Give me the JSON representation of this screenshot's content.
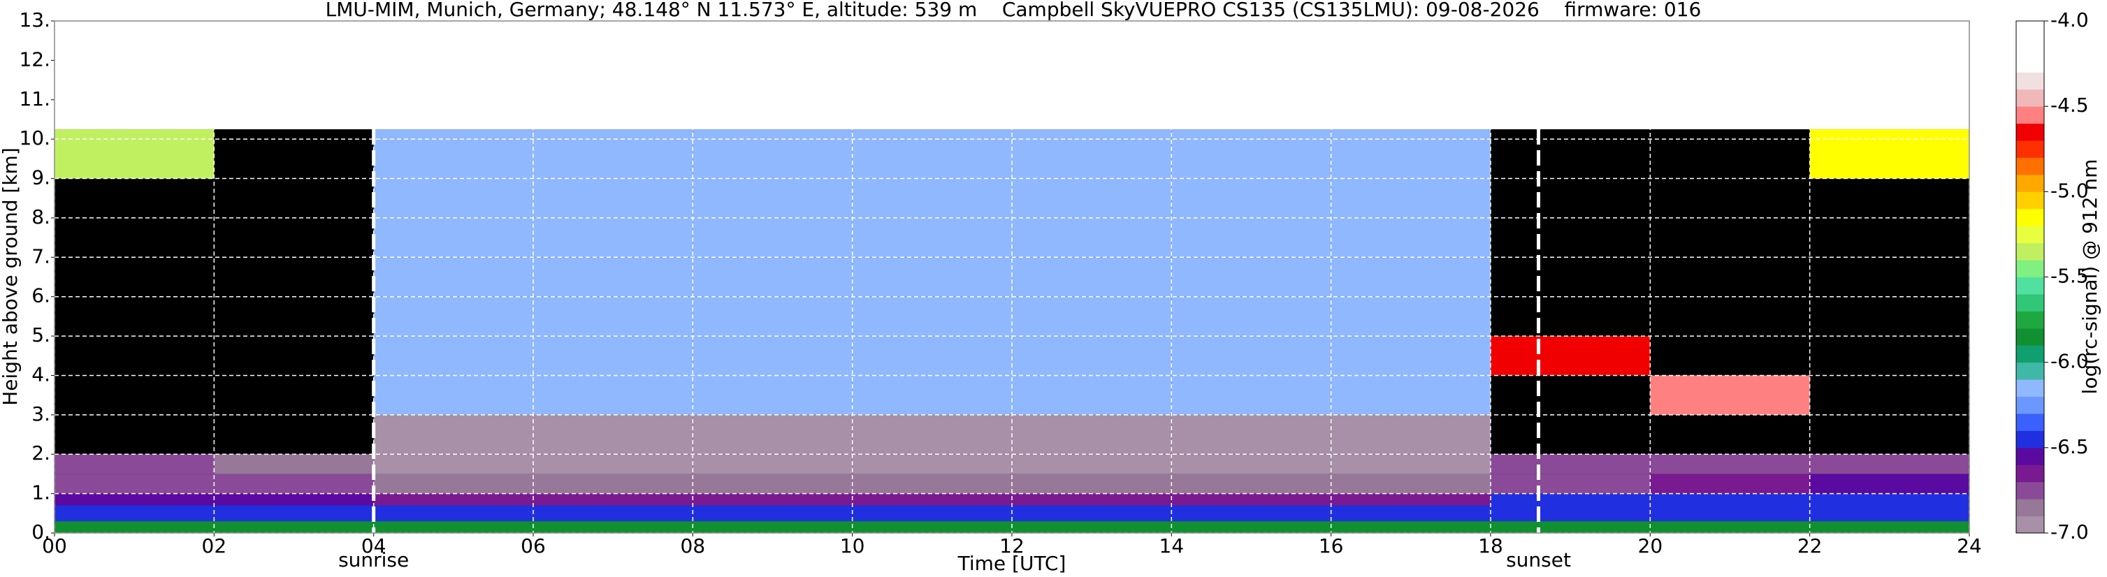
{
  "chart_data": {
    "type": "heatmap",
    "title": "LMU-MIM, Munich, Germany; 48.148° N 11.573° E, altitude: 539 m    Campbell SkyVUEPRO CS135 (CS135LMU): 09-08-2026    firmware: 016",
    "xlabel": "Time [UTC]",
    "ylabel": "Height above ground [km]",
    "colorbar_label": "log(rc-signal) @ 912 nm",
    "xlim": [
      0,
      24
    ],
    "ylim": [
      0,
      13
    ],
    "xticks": [
      {
        "value": 0,
        "label": "00"
      },
      {
        "value": 2,
        "label": "02"
      },
      {
        "value": 4,
        "label": "04"
      },
      {
        "value": 6,
        "label": "06"
      },
      {
        "value": 8,
        "label": "08"
      },
      10,
      12,
      14,
      16,
      18,
      20,
      22,
      24
    ],
    "yticks": [
      {
        "value": 0,
        "label": "0."
      },
      {
        "value": 1,
        "label": "1."
      },
      {
        "value": 2,
        "label": "2."
      },
      {
        "value": 3,
        "label": "3."
      },
      {
        "value": 4,
        "label": "4."
      },
      {
        "value": 5,
        "label": "5."
      },
      {
        "value": 6,
        "label": "6."
      },
      {
        "value": 7,
        "label": "7."
      },
      {
        "value": 8,
        "label": "8."
      },
      {
        "value": 9,
        "label": "9."
      },
      {
        "value": 10,
        "label": "10."
      },
      {
        "value": 11,
        "label": "11."
      },
      {
        "value": 12,
        "label": "12."
      },
      {
        "value": 13,
        "label": "13."
      }
    ],
    "grid": true,
    "x_edges": [
      0,
      2,
      4,
      6,
      8,
      10,
      12,
      14,
      16,
      18,
      20,
      22,
      24
    ],
    "y_edges": [
      0,
      0.3,
      0.7,
      1.0,
      1.5,
      2.0,
      3,
      4,
      5,
      6,
      7,
      8,
      9,
      10.25
    ],
    "values": [
      [
        -5.85,
        -5.85,
        -5.85,
        -5.85,
        -5.85,
        -5.85,
        -5.85,
        -5.85,
        -5.85,
        -5.85,
        -5.85,
        -5.85
      ],
      [
        -6.45,
        -6.45,
        -6.45,
        -6.45,
        -6.45,
        -6.45,
        -6.45,
        -6.45,
        -6.45,
        -6.45,
        -6.45,
        -6.45
      ],
      [
        -6.6,
        -6.6,
        -6.65,
        -6.65,
        -6.65,
        -6.65,
        -6.65,
        -6.65,
        -6.65,
        -6.5,
        -6.45,
        -6.45
      ],
      [
        -6.75,
        -6.8,
        -6.9,
        -6.9,
        -6.9,
        -6.9,
        -6.9,
        -6.9,
        -6.9,
        -6.75,
        -6.7,
        -6.55
      ],
      [
        -6.75,
        -6.85,
        -6.95,
        -6.95,
        -6.95,
        -6.95,
        -6.95,
        -6.95,
        -6.95,
        -6.8,
        -6.8,
        -6.75
      ],
      [
        null,
        null,
        -6.95,
        -6.95,
        -6.95,
        -6.95,
        -6.95,
        -6.95,
        -6.95,
        null,
        null,
        null
      ],
      [
        null,
        null,
        -6.15,
        -6.15,
        -6.15,
        -6.15,
        -6.15,
        -6.15,
        -6.15,
        null,
        -4.6,
        null
      ],
      [
        null,
        null,
        -6.15,
        -6.15,
        -6.15,
        -6.15,
        -6.15,
        -6.15,
        -6.15,
        -4.7,
        null,
        null
      ],
      [
        null,
        null,
        -6.15,
        -6.15,
        -6.15,
        -6.15,
        -6.15,
        -6.15,
        -6.15,
        null,
        null,
        null
      ],
      [
        null,
        null,
        -6.15,
        -6.15,
        -6.15,
        -6.15,
        -6.15,
        -6.15,
        -6.15,
        null,
        null,
        null
      ],
      [
        null,
        null,
        -6.15,
        -6.15,
        -6.15,
        -6.15,
        -6.15,
        -6.15,
        -6.15,
        null,
        null,
        null
      ],
      [
        null,
        null,
        -6.15,
        -6.15,
        -6.15,
        -6.15,
        -6.15,
        -6.15,
        -6.15,
        null,
        null,
        null
      ],
      [
        -5.4,
        null,
        -6.15,
        -6.15,
        -6.15,
        -6.15,
        -6.15,
        -6.15,
        -6.15,
        null,
        null,
        -5.2
      ]
    ],
    "clim": [
      -7,
      -4
    ],
    "colors": [
      "#a890a8",
      "#987898",
      "#8a4a98",
      "#7a1a90",
      "#5a0aa0",
      "#2030e0",
      "#3a60ff",
      "#6a98ff",
      "#90b8ff",
      "#40b8a8",
      "#10a070",
      "#109030",
      "#20a840",
      "#30c878",
      "#50e0a0",
      "#80f080",
      "#c0f060",
      "#e8ff40",
      "#ffff00",
      "#ffd000",
      "#ffa800",
      "#ff7000",
      "#ff3000",
      "#f00000",
      "#ff8080",
      "#f0b8b8",
      "#f0e0e0",
      "#ffffff",
      "#ffffff",
      "#ffffff"
    ],
    "cticks": [
      {
        "value": -7,
        "label": "-7.0"
      },
      -6.5,
      {
        "value": -6,
        "label": "-6.0"
      },
      -5.5,
      {
        "value": -5,
        "label": "-5.0"
      },
      -4.5,
      {
        "value": -4,
        "label": "-4.0"
      }
    ],
    "annotations": [
      {
        "x": 4.0,
        "label": "sunrise"
      },
      {
        "x": 18.6,
        "label": "sunset"
      }
    ]
  }
}
